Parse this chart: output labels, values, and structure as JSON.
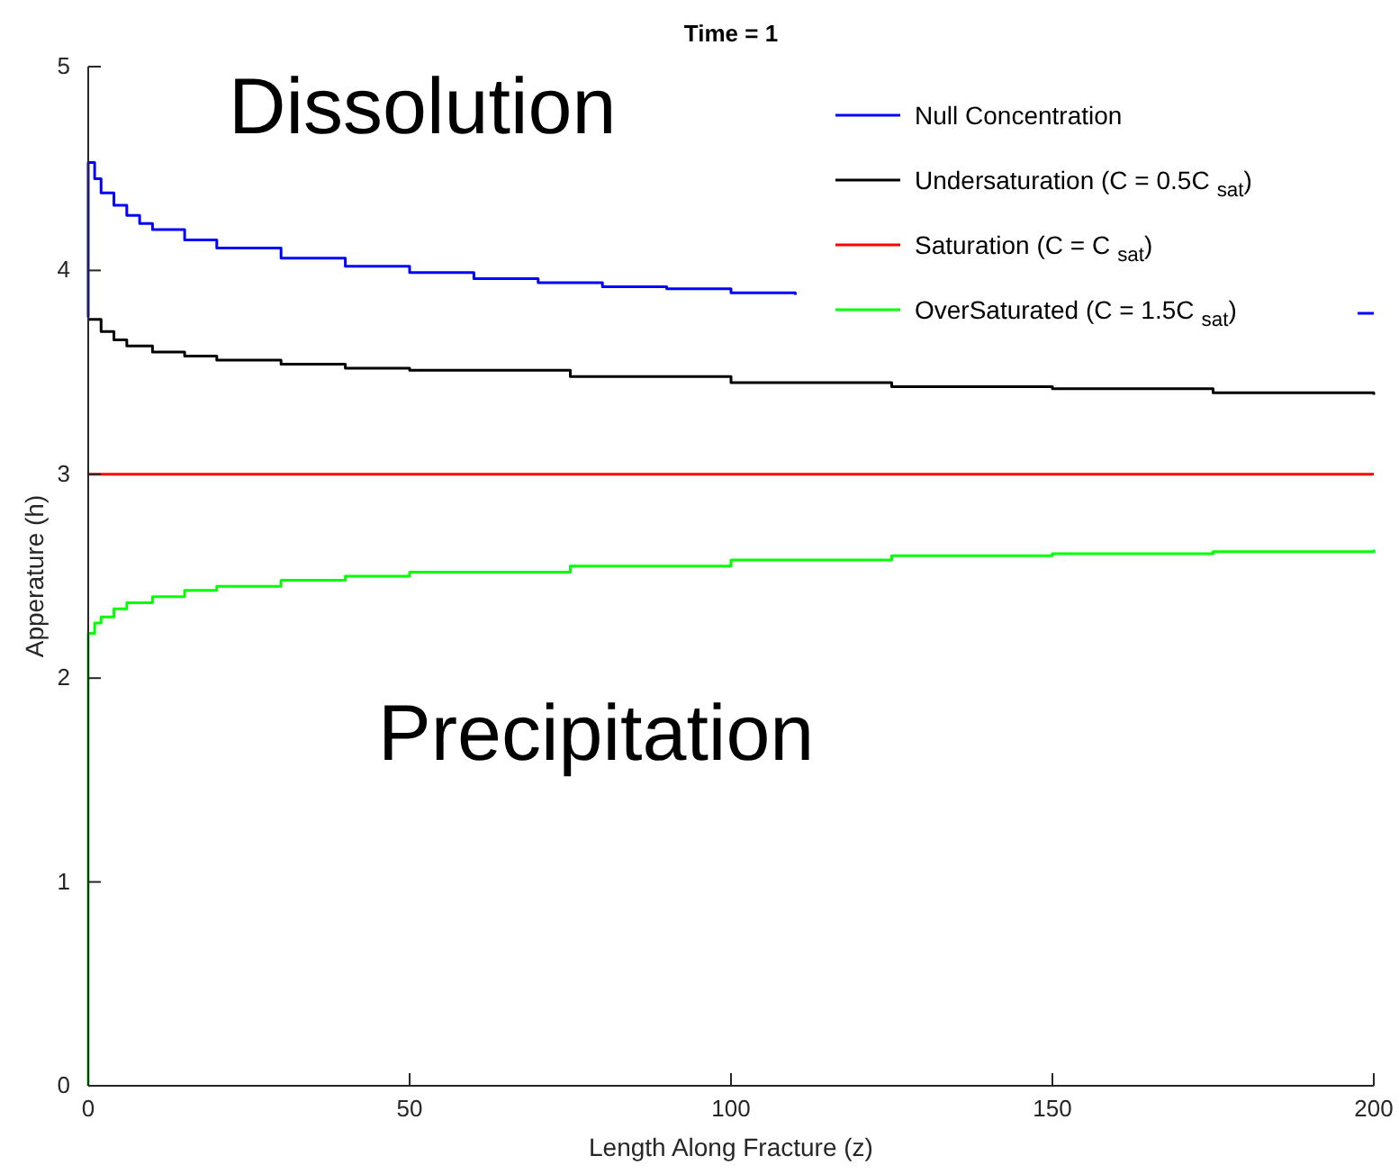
{
  "chart_data": {
    "type": "step",
    "title": "Time = 1",
    "xlabel": "Length Along Fracture (z)",
    "ylabel": "Apperature (h)",
    "xlim": [
      0,
      200
    ],
    "xticks": [
      0,
      50,
      100,
      150,
      200
    ],
    "ylim": [
      0,
      5
    ],
    "yticks": [
      0,
      1,
      2,
      3,
      4,
      5
    ],
    "legend": "top right",
    "annotations": [
      "Dissolution",
      "Precipitation"
    ],
    "series": [
      {
        "name": "Null Concentration",
        "color": "#0000ff",
        "x": [
          0,
          0,
          1,
          2,
          4,
          6,
          8,
          10,
          15,
          20,
          30,
          40,
          50,
          60,
          70,
          80,
          90,
          100,
          110,
          115,
          197,
          200
        ],
        "values": [
          3.77,
          4.53,
          4.45,
          4.38,
          4.32,
          4.27,
          4.23,
          4.2,
          4.15,
          4.11,
          4.06,
          4.02,
          3.99,
          3.96,
          3.94,
          3.92,
          3.91,
          3.89,
          3.88,
          null,
          3.79,
          3.79
        ]
      },
      {
        "name": "Undersaturation (C = 0.5C$_{sat}$)",
        "color": "#000000",
        "x": [
          0,
          2,
          4,
          6,
          10,
          15,
          20,
          30,
          40,
          50,
          75,
          100,
          125,
          150,
          175,
          200
        ],
        "values": [
          3.76,
          3.7,
          3.66,
          3.63,
          3.6,
          3.58,
          3.56,
          3.54,
          3.52,
          3.51,
          3.48,
          3.45,
          3.43,
          3.42,
          3.4,
          3.39
        ]
      },
      {
        "name": "Saturation (C = C$_{sat}$)",
        "color": "#ff0000",
        "x": [
          0,
          200
        ],
        "values": [
          3,
          3
        ]
      },
      {
        "name": "OverSaturated (C = 1.5C$_{sat}$)",
        "color": "#00ff00",
        "x": [
          0,
          0,
          1,
          2,
          4,
          6,
          10,
          15,
          20,
          30,
          40,
          50,
          75,
          100,
          125,
          150,
          175,
          200
        ],
        "values": [
          0,
          2.22,
          2.27,
          2.3,
          2.34,
          2.37,
          2.4,
          2.43,
          2.45,
          2.48,
          2.5,
          2.52,
          2.55,
          2.58,
          2.6,
          2.61,
          2.62,
          2.63
        ]
      }
    ]
  }
}
